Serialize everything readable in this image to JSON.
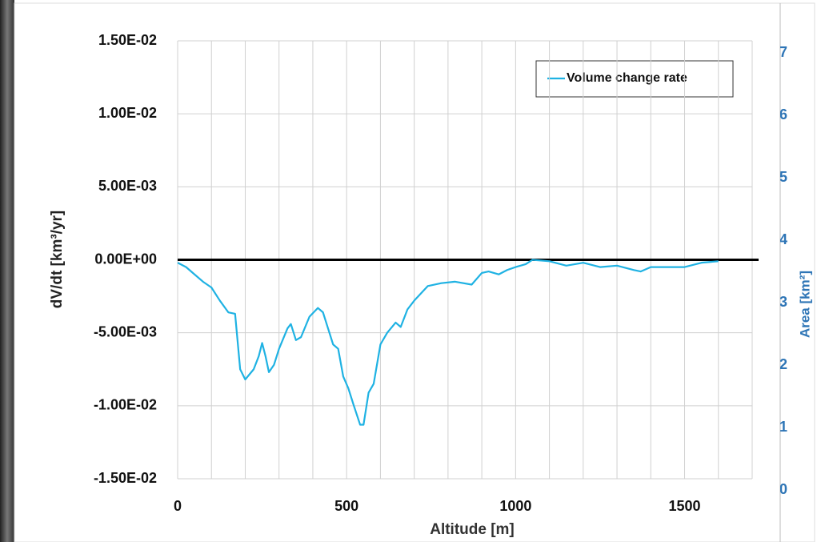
{
  "chart_data": {
    "type": "line",
    "x_label": "Altitude [m]",
    "y_label": "dV/dt [km³/yr]",
    "y2_label": "Area [km²]",
    "x": [
      0,
      25,
      50,
      75,
      100,
      125,
      150,
      170,
      185,
      200,
      225,
      240,
      250,
      260,
      270,
      285,
      300,
      325,
      335,
      350,
      365,
      390,
      415,
      430,
      445,
      460,
      475,
      490,
      505,
      520,
      540,
      550,
      565,
      580,
      600,
      620,
      645,
      660,
      680,
      700,
      740,
      780,
      820,
      870,
      900,
      920,
      950,
      975,
      1000,
      1030,
      1050,
      1100,
      1150,
      1200,
      1250,
      1300,
      1350,
      1370,
      1400,
      1450,
      1500,
      1550,
      1600
    ],
    "series": [
      {
        "name": "Volume change rate",
        "color": "#1fb2e3",
        "values": [
          -0.0002,
          -0.0005,
          -0.001,
          -0.0015,
          -0.0019,
          -0.0028,
          -0.0036,
          -0.0037,
          -0.0075,
          -0.0082,
          -0.0075,
          -0.0066,
          -0.0057,
          -0.0066,
          -0.0077,
          -0.0072,
          -0.0061,
          -0.0047,
          -0.0044,
          -0.0055,
          -0.0053,
          -0.0039,
          -0.0033,
          -0.0036,
          -0.0047,
          -0.0058,
          -0.0061,
          -0.008,
          -0.0088,
          -0.0099,
          -0.0113,
          -0.0113,
          -0.0091,
          -0.0085,
          -0.0058,
          -0.005,
          -0.0043,
          -0.0046,
          -0.0034,
          -0.0028,
          -0.0018,
          -0.0016,
          -0.0015,
          -0.0017,
          -0.0009,
          -0.0008,
          -0.001,
          -0.0007,
          -0.0005,
          -0.0003,
          0,
          -0.0001,
          -0.0004,
          -0.0002,
          -0.0005,
          -0.0004,
          -0.0007,
          -0.0008,
          -0.0005,
          -0.0005,
          -0.0005,
          -0.0002,
          -0.0001
        ]
      }
    ],
    "xlim": [
      0,
      1700
    ],
    "xticks": [
      0,
      500,
      1000,
      1500
    ],
    "xgrid": [
      100,
      200,
      300,
      400,
      500,
      600,
      700,
      800,
      900,
      1000,
      1100,
      1200,
      1300,
      1400,
      1500,
      1600,
      1700
    ],
    "ylim": [
      -0.015,
      0.015
    ],
    "yticks": [
      {
        "value": -0.015,
        "label": "-1.50E-02"
      },
      {
        "value": -0.01,
        "label": "-1.00E-02"
      },
      {
        "value": -0.005,
        "label": "-5.00E-03"
      },
      {
        "value": 0,
        "label": "0.00E+00"
      },
      {
        "value": 0.005,
        "label": "5.00E-03"
      },
      {
        "value": 0.01,
        "label": "1.00E-02"
      },
      {
        "value": 0.015,
        "label": "1.50E-02"
      }
    ],
    "y2lim": [
      0,
      7
    ],
    "y2ticks": [
      0,
      1,
      2,
      3,
      4,
      5,
      6,
      7
    ],
    "grid": true,
    "legend": "top-right"
  }
}
